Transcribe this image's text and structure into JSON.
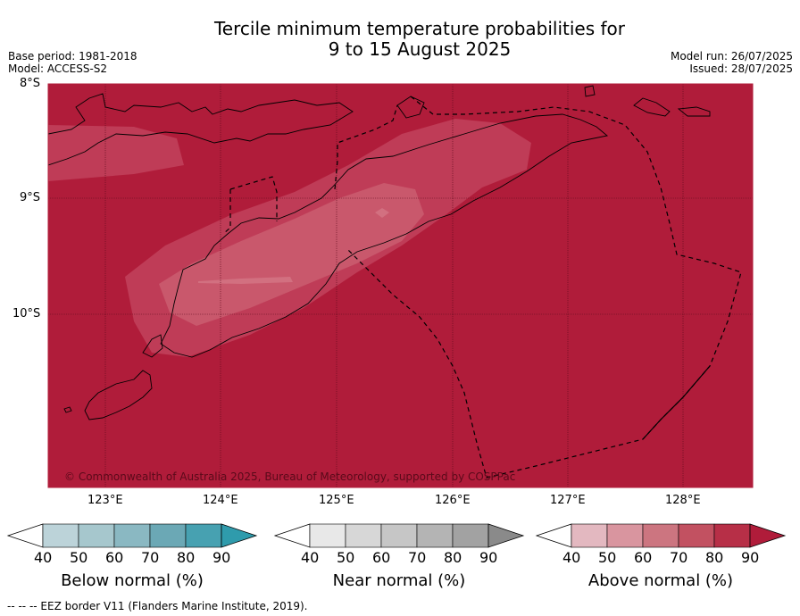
{
  "title": {
    "line1": "Tercile minimum temperature probabilities for",
    "line2": "9 to 15 August 2025"
  },
  "meta_left": {
    "base_period": "Base period: 1981-2018",
    "model": "Model: ACCESS-S2"
  },
  "meta_right": {
    "model_run": "Model run: 26/07/2025",
    "issued": "Issued: 28/07/2025"
  },
  "map": {
    "lat_labels": [
      "8°S",
      "9°S",
      "10°S"
    ],
    "lon_labels": [
      "123°E",
      "124°E",
      "125°E",
      "126°E",
      "127°E",
      "128°E"
    ],
    "copyright": "© Commonwealth of Australia 2025, Bureau of Meteorology, supported by COSPPac",
    "colors": {
      "ocean_fill": "#b01c3a",
      "light_band": "#bf3c57",
      "lighter_band": "#c9586c",
      "lightest_band": "#d27080"
    }
  },
  "colorbars": [
    {
      "title": "Below normal (%)",
      "ticks": [
        "40",
        "50",
        "60",
        "70",
        "80",
        "90"
      ],
      "colors": [
        "#ffffff",
        "#bcd3d9",
        "#a6c7cd",
        "#8ab8c2",
        "#6ba8b5",
        "#47a1b1",
        "#2f9bac"
      ]
    },
    {
      "title": "Near normal (%)",
      "ticks": [
        "40",
        "50",
        "60",
        "70",
        "80",
        "90"
      ],
      "colors": [
        "#ffffff",
        "#e8e8e8",
        "#d7d7d7",
        "#c6c6c6",
        "#b4b4b4",
        "#a2a2a2",
        "#8a8a8a"
      ]
    },
    {
      "title": "Above normal (%)",
      "ticks": [
        "40",
        "50",
        "60",
        "70",
        "80",
        "90"
      ],
      "colors": [
        "#ffffff",
        "#e3b8c0",
        "#d9959f",
        "#cc7580",
        "#c25161",
        "#b72f47",
        "#b01c3a"
      ]
    }
  ],
  "footer": "--  --  -- EEZ border V11 (Flanders Marine Institute, 2019)."
}
